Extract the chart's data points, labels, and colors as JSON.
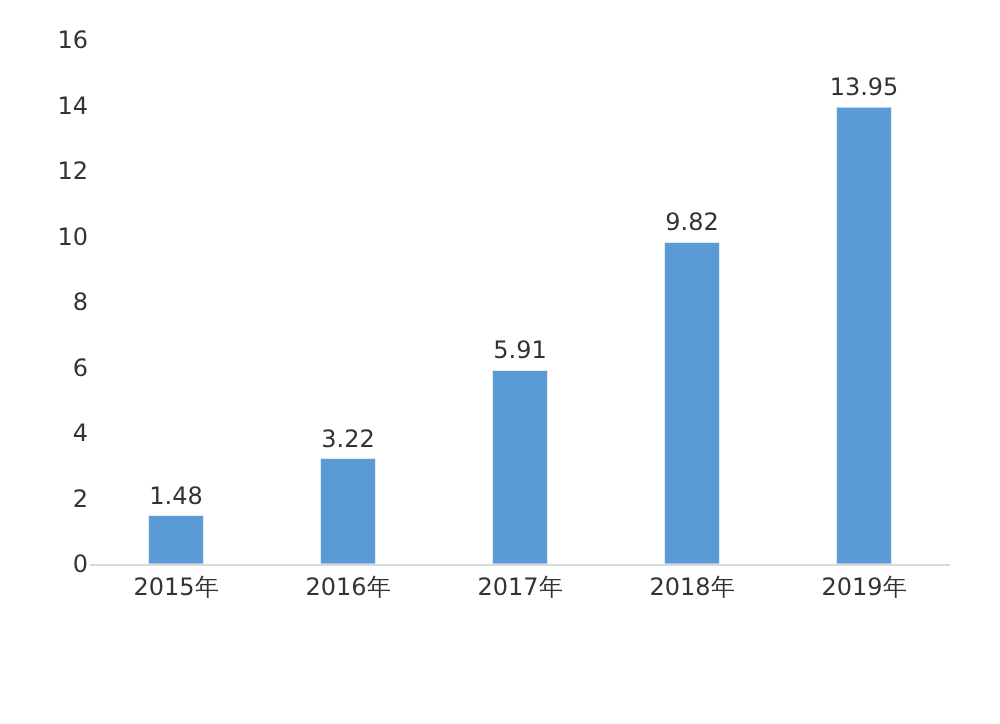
{
  "chart_data": {
    "type": "bar",
    "categories": [
      "2015年",
      "2016年",
      "2017年",
      "2018年",
      "2019年"
    ],
    "values": [
      1.48,
      3.22,
      5.91,
      9.82,
      13.95
    ],
    "color": "#5b9bd5",
    "ylim": [
      0,
      16
    ],
    "yticks": [
      0,
      2,
      4,
      6,
      8,
      10,
      12,
      14,
      16
    ],
    "data_labels": true
  }
}
